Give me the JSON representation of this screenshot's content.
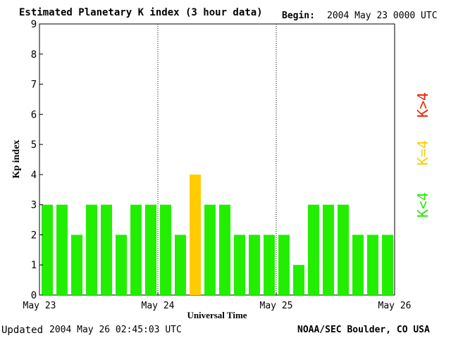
{
  "header": {
    "title": "Estimated Planetary K index (3 hour data)",
    "begin_label": "Begin:",
    "begin_value": "2004 May 23 0000 UTC"
  },
  "footer": {
    "updated_label": "Updated",
    "updated_value": "2004 May 26 02:45:03 UTC",
    "credit": "NOAA/SEC Boulder, CO USA"
  },
  "legend": {
    "above": "K>4",
    "equal": "K=4",
    "below": "K<4"
  },
  "colors": {
    "below": "#22ee00",
    "equal": "#ffcc00",
    "above": "#ee2200"
  },
  "chart_data": {
    "type": "bar",
    "title": "Estimated Planetary K index (3 hour data)",
    "xlabel": "Universal Time",
    "ylabel": "Kp index",
    "ylim": [
      0,
      9
    ],
    "yticks": [
      0,
      1,
      2,
      3,
      4,
      5,
      6,
      7,
      8,
      9
    ],
    "xlim_days": [
      "May 23",
      "May 26"
    ],
    "xtick_labels": [
      "May 23",
      "May 24",
      "May 25",
      "May 26"
    ],
    "day_dividers": [
      "May 24",
      "May 25"
    ],
    "interval_hours": 3,
    "values": [
      3,
      3,
      2,
      3,
      3,
      2,
      3,
      3,
      3,
      2,
      4,
      3,
      3,
      2,
      2,
      2,
      2,
      1,
      3,
      3,
      3,
      2,
      2,
      2
    ],
    "grid": false
  }
}
